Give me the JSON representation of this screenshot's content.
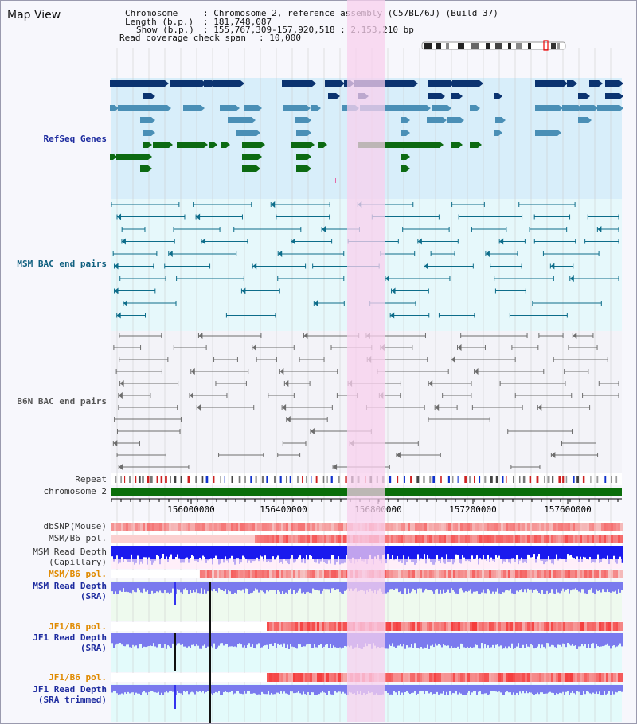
{
  "view": {
    "title": "Map View"
  },
  "header": {
    "chromosome_key": "Chromosome",
    "chromosome_value": ": Chromosome 2, reference assembly (C57BL/6J) (Build 37)",
    "length_key": "Length (b.p.)",
    "length_value": ": 181,748,087",
    "show_key": "Show (b.p.)",
    "show_value": ": 155,767,309-157,920,518 : 2,153,210 bp",
    "coverage_key": "Read coverage check span",
    "coverage_value": ": 10,000"
  },
  "tracks": {
    "refseq": "RefSeq Genes",
    "msm_bac": "MSM BAC end pairs",
    "b6n_bac": "B6N BAC end pairs",
    "repeat": "Repeat",
    "chromosome": "chromosome 2",
    "dbsnp": "dbSNP(Mouse)",
    "msm_b6_pol": "MSM/B6 pol.",
    "msm_depth_cap_1": "MSM Read Depth",
    "msm_depth_cap_2": "(Capillary)",
    "msm_b6_pol_sra": "MSM/B6 pol.",
    "msm_depth_sra_1": "MSM Read Depth",
    "msm_depth_sra_2": "(SRA)",
    "jf1_b6_pol_1": "JF1/B6 pol.",
    "jf1_depth_sra_1": "JF1 Read Depth",
    "jf1_depth_sra_2": "(SRA)",
    "jf1_b6_pol_2": "JF1/B6 pol.",
    "jf1_depth_trim_1": "JF1 Read Depth",
    "jf1_depth_trim_2": "(SRA trimmed)"
  },
  "axis": {
    "ticks": [
      "156000000",
      "156400000",
      "156800000",
      "157200000",
      "157600000"
    ]
  },
  "colors": {
    "refseq_bg": "#d8eefa",
    "msm_bg": "#e6f8fb",
    "b6n_bg": "#f3f3f8",
    "highlight": "#f8d0ee",
    "gene_dark": "#0b3370",
    "gene_mid": "#4a8fb6",
    "gene_green": "#0c6a12",
    "bac_msm": "#0d6d8a",
    "bac_b6n": "#6d6d6d",
    "chromosome": "#0a6e0a",
    "depth_blue": "#1a1aee",
    "depth_sra": "#7a7aee",
    "label_blue": "#1d2b9f",
    "label_orange": "#e08a00",
    "label_teal": "#0f5f7f"
  }
}
